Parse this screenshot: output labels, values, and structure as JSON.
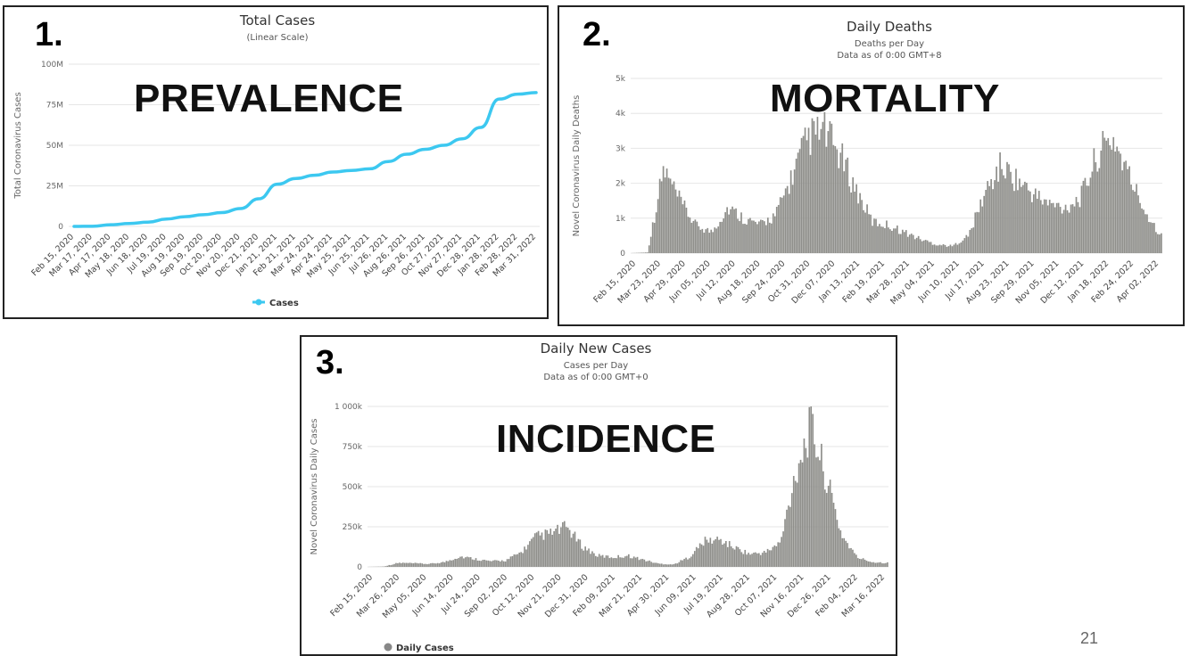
{
  "slide_number": "21",
  "panels": [
    {
      "number": "1.",
      "overlay": "PREVALENCE"
    },
    {
      "number": "2.",
      "overlay": "MORTALITY"
    },
    {
      "number": "3.",
      "overlay": "INCIDENCE"
    }
  ],
  "colors": {
    "cases_line": "#3cc8f0",
    "bars": "#8e8e8a",
    "axis_text": "#666666",
    "grid": "#e6e6e6"
  },
  "chart_data": [
    {
      "type": "line",
      "title": "Total Cases",
      "subtitle": "(Linear Scale)",
      "ylabel": "Total Coronavirus Cases",
      "ylim": [
        0,
        100000000
      ],
      "y_ticks": [
        0,
        25000000,
        50000000,
        75000000,
        100000000
      ],
      "y_tick_labels": [
        "0",
        "25M",
        "50M",
        "75M",
        "100M"
      ],
      "x_tick_labels": [
        "Feb 15, 2020",
        "Mar 17, 2020",
        "Apr 17, 2020",
        "May 18, 2020",
        "Jun 18, 2020",
        "Jul 19, 2020",
        "Aug 19, 2020",
        "Sep 19, 2020",
        "Oct 20, 2020",
        "Nov 20, 2020",
        "Dec 21, 2020",
        "Jan 21, 2021",
        "Feb 21, 2021",
        "Mar 24, 2021",
        "Apr 24, 2021",
        "May 25, 2021",
        "Jun 25, 2021",
        "Jul 26, 2021",
        "Aug 26, 2021",
        "Sep 26, 2021",
        "Oct 27, 2021",
        "Nov 27, 2021",
        "Dec 28, 2021",
        "Jan 28, 2022",
        "Feb 28, 2022",
        "Mar 31, 2022"
      ],
      "legend": [
        "Cases"
      ],
      "legend_position": "bottom-center",
      "series": [
        {
          "name": "Cases",
          "values": [
            0,
            100000,
            1000000,
            1800000,
            2600000,
            4500000,
            6000000,
            7200000,
            8500000,
            11000000,
            17000000,
            26000000,
            29500000,
            31500000,
            33500000,
            34500000,
            35500000,
            40000000,
            44500000,
            47500000,
            50000000,
            54000000,
            61000000,
            78500000,
            81500000,
            82500000
          ]
        }
      ]
    },
    {
      "type": "bar",
      "title": "Daily Deaths",
      "subtitle": "Deaths per Day",
      "subtitle2": "Data as of 0:00 GMT+8",
      "ylabel": "Novel Coronavirus Daily Deaths",
      "ylim": [
        0,
        5000
      ],
      "y_ticks": [
        0,
        1000,
        2000,
        3000,
        4000,
        5000
      ],
      "y_tick_labels": [
        "0",
        "1k",
        "2k",
        "3k",
        "4k",
        "5k"
      ],
      "x_tick_labels": [
        "Feb 15, 2020",
        "Mar 23, 2020",
        "Apr 29, 2020",
        "Jun 05, 2020",
        "Jul 12, 2020",
        "Aug 18, 2020",
        "Sep 24, 2020",
        "Oct 31, 2020",
        "Dec 07, 2020",
        "Jan 13, 2021",
        "Feb 19, 2021",
        "Mar 28, 2021",
        "May 04, 2021",
        "Jun 10, 2021",
        "Jul 17, 2021",
        "Aug 23, 2021",
        "Sep 29, 2021",
        "Nov 05, 2021",
        "Dec 12, 2021",
        "Jan 18, 2022",
        "Feb 24, 2022",
        "Apr 02, 2022"
      ],
      "series": [
        {
          "name": "Daily Deaths",
          "values": [
            0,
            20,
            2400,
            1500,
            800,
            600,
            1300,
            1000,
            800,
            1100,
            2200,
            3300,
            3500,
            2800,
            1800,
            900,
            800,
            600,
            400,
            250,
            200,
            500,
            1700,
            2500,
            2100,
            1700,
            1400,
            1300,
            1600,
            2800,
            3300,
            2200,
            1200,
            500
          ]
        }
      ]
    },
    {
      "type": "bar",
      "title": "Daily New Cases",
      "subtitle": "Cases per Day",
      "subtitle2": "Data as of 0:00 GMT+0",
      "ylabel": "Novel Coronavirus Daily Cases",
      "ylim": [
        0,
        1000000
      ],
      "y_ticks": [
        0,
        250000,
        500000,
        750000,
        1000000
      ],
      "y_tick_labels": [
        "0",
        "250k",
        "500k",
        "750k",
        "1 000k"
      ],
      "x_tick_labels": [
        "Feb 15, 2020",
        "Mar 26, 2020",
        "May 05, 2020",
        "Jun 14, 2020",
        "Jul 24, 2020",
        "Sep 02, 2020",
        "Oct 12, 2020",
        "Nov 21, 2020",
        "Dec 31, 2020",
        "Feb 09, 2021",
        "Mar 21, 2021",
        "Apr 30, 2021",
        "Jun 09, 2021",
        "Jul 19, 2021",
        "Aug 28, 2021",
        "Oct 07, 2021",
        "Nov 16, 2021",
        "Dec 26, 2021",
        "Feb 04, 2022",
        "Mar 16, 2022"
      ],
      "legend": [
        "Daily Cases"
      ],
      "series": [
        {
          "name": "Daily Cases",
          "values": [
            0,
            2000,
            25000,
            22000,
            18000,
            30000,
            65000,
            50000,
            35000,
            40000,
            90000,
            190000,
            210000,
            250000,
            130000,
            70000,
            60000,
            70000,
            45000,
            20000,
            15000,
            60000,
            160000,
            170000,
            120000,
            80000,
            90000,
            150000,
            600000,
            880000,
            550000,
            200000,
            60000,
            30000,
            25000
          ]
        }
      ]
    }
  ]
}
